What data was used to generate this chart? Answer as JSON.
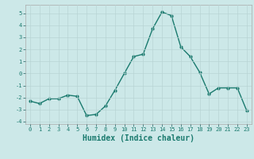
{
  "x": [
    0,
    1,
    2,
    3,
    4,
    5,
    6,
    7,
    8,
    9,
    10,
    11,
    12,
    13,
    14,
    15,
    16,
    17,
    18,
    19,
    20,
    21,
    22,
    23
  ],
  "y": [
    -2.3,
    -2.5,
    -2.1,
    -2.1,
    -1.8,
    -1.9,
    -3.5,
    -3.4,
    -2.7,
    -1.4,
    0.0,
    1.4,
    1.6,
    3.7,
    5.1,
    4.8,
    2.2,
    1.4,
    0.1,
    -1.7,
    -1.2,
    -1.2,
    -1.2,
    -3.1
  ],
  "line_color": "#1a7a6e",
  "bg_color": "#cce8e8",
  "grid_color": "#b8d4d4",
  "xlabel": "Humidex (Indice chaleur)",
  "ylim": [
    -4.2,
    5.7
  ],
  "xlim": [
    -0.5,
    23.5
  ],
  "yticks": [
    -4,
    -3,
    -2,
    -1,
    0,
    1,
    2,
    3,
    4,
    5
  ],
  "xticks": [
    0,
    1,
    2,
    3,
    4,
    5,
    6,
    7,
    8,
    9,
    10,
    11,
    12,
    13,
    14,
    15,
    16,
    17,
    18,
    19,
    20,
    21,
    22,
    23
  ],
  "tick_fontsize": 5.0,
  "xlabel_fontsize": 7.0,
  "marker": "o",
  "marker_size": 2.0,
  "line_width": 1.0
}
